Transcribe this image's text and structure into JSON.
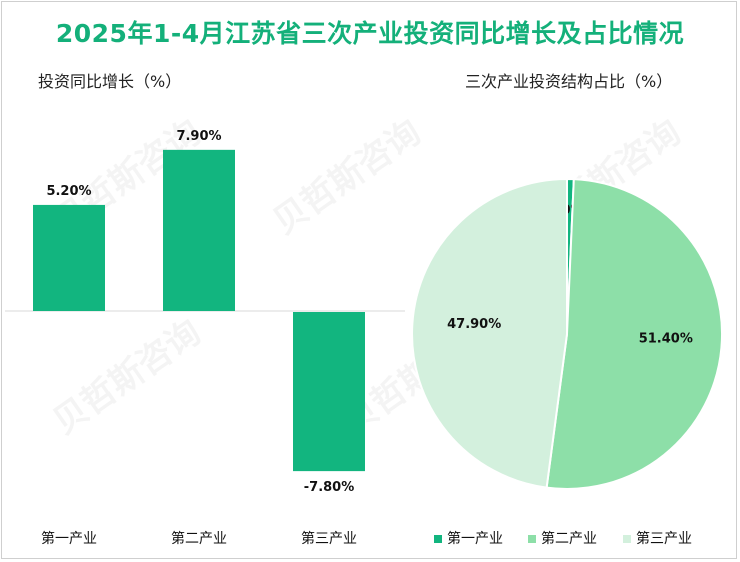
{
  "title": "2025年1-4月江苏省三次产业投资同比增长及占比情况",
  "colors": {
    "title": "#14b07a",
    "bar": "#12b57f",
    "primary": "#12b57f",
    "secondary": "#8ddfa8",
    "tertiary": "#d3f0dd"
  },
  "chart_data": [
    {
      "type": "bar",
      "title": "投资同比增长（%）",
      "categories": [
        "第一产业",
        "第二产业",
        "第三产业"
      ],
      "values": [
        5.2,
        7.9,
        -7.8
      ],
      "data_labels": [
        "5.20%",
        "7.90%",
        "-7.80%"
      ],
      "ylim": [
        -10,
        10
      ],
      "grid": false
    },
    {
      "type": "pie",
      "title": "三次产业投资结构占比（%）",
      "labels": [
        "第一产业",
        "第二产业",
        "第三产业"
      ],
      "values": [
        0.7,
        51.4,
        47.9
      ],
      "data_labels": [
        "0.70%",
        "51.40%",
        "47.90%"
      ],
      "legend_position": "bottom"
    }
  ]
}
